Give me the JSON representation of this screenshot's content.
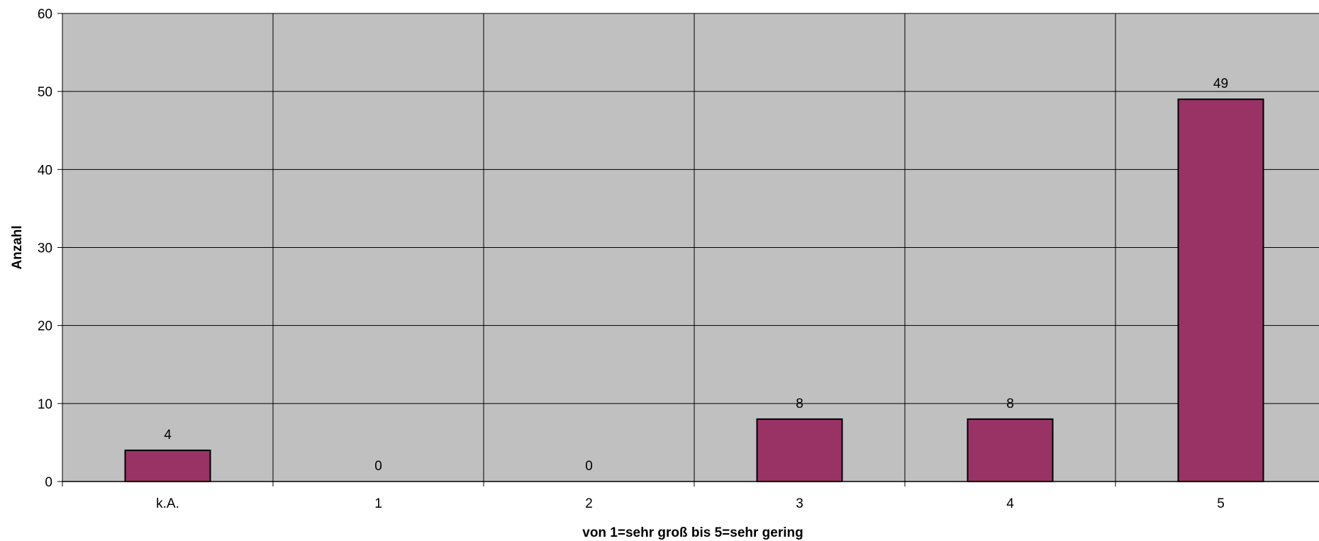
{
  "chart_data": {
    "type": "bar",
    "categories": [
      "k.A.",
      "1",
      "2",
      "3",
      "4",
      "5"
    ],
    "values": [
      4,
      0,
      0,
      8,
      8,
      49
    ],
    "data_labels": [
      "4",
      "0",
      "0",
      "8",
      "8",
      "49"
    ],
    "xlabel": "von 1=sehr groß bis 5=sehr gering",
    "ylabel": "Anzahl",
    "ylim": [
      0,
      60
    ],
    "yticks": [
      0,
      10,
      20,
      30,
      40,
      50,
      60
    ],
    "ytick_labels": [
      "0",
      "10",
      "20",
      "30",
      "40",
      "50",
      "60"
    ],
    "grid": true,
    "legend": false,
    "colors": {
      "plot_background": "#C0C0C0",
      "bar_fill": "#993366",
      "bar_stroke": "#000000",
      "gridline": "#000000"
    }
  }
}
